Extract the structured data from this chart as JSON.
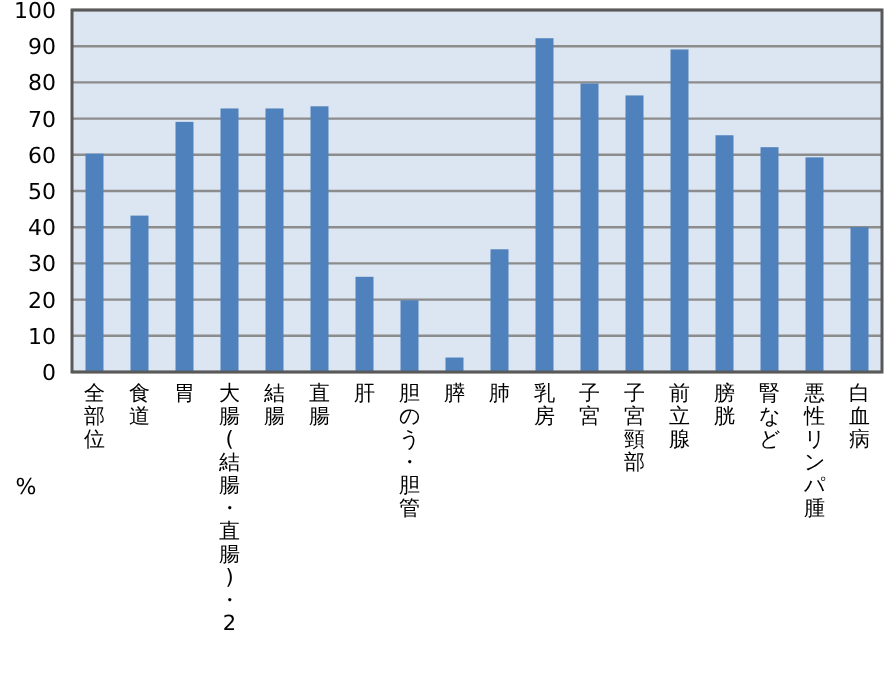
{
  "chart_data": {
    "type": "bar",
    "ylabel": "%",
    "categories": [
      "全部位",
      "食道",
      "胃",
      "大腸(結腸・直腸)・2",
      "結腸",
      "直腸",
      "肝",
      "胆のう・胆管",
      "膵",
      "肺",
      "乳房",
      "子宮",
      "子宮頸部",
      "前立腺",
      "膀胱",
      "腎など",
      "悪性リンパ腫",
      "白血病"
    ],
    "values": [
      60.3,
      43.2,
      69.1,
      72.8,
      72.8,
      73.4,
      26.3,
      19.8,
      4.0,
      33.9,
      92.2,
      79.7,
      76.4,
      89.1,
      65.4,
      62.1,
      59.3,
      40.0
    ],
    "color": "#4f81bd",
    "ylim": [
      0,
      100
    ],
    "yticks": [
      0,
      10,
      20,
      30,
      40,
      50,
      60,
      70,
      80,
      90,
      100
    ],
    "grid": "y"
  }
}
